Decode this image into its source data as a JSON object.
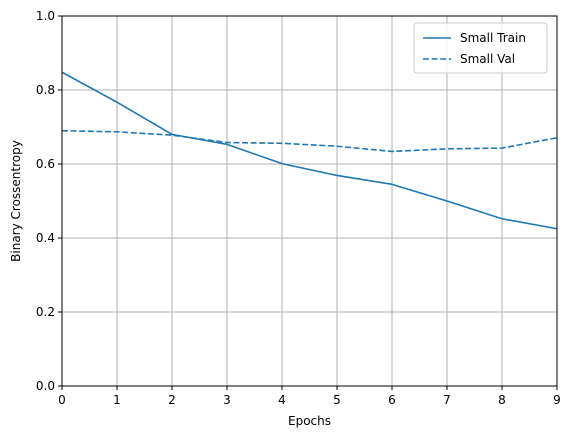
{
  "chart_data": {
    "type": "line",
    "title": "",
    "xlabel": "Epochs",
    "ylabel": "Binary Crossentropy",
    "xlim": [
      0,
      9
    ],
    "ylim": [
      0,
      1.0
    ],
    "xticks": [
      0,
      1,
      2,
      3,
      4,
      5,
      6,
      7,
      8,
      9
    ],
    "xtick_labels": [
      "0",
      "1",
      "2",
      "3",
      "4",
      "5",
      "6",
      "7",
      "8",
      "9"
    ],
    "yticks": [
      0,
      0.2,
      0.4,
      0.6,
      0.8,
      1.0
    ],
    "ytick_labels": [
      "0.0",
      "0.2",
      "0.4",
      "0.6",
      "0.8",
      "1.0"
    ],
    "grid": true,
    "legend_position": "top-right",
    "x": [
      0,
      1,
      2,
      3,
      4,
      5,
      6,
      7,
      8,
      9
    ],
    "series": [
      {
        "name": "Small Train",
        "style": "solid",
        "color": "#1f77b4",
        "values": [
          0.848,
          0.767,
          0.68,
          0.653,
          0.601,
          0.569,
          0.545,
          0.5,
          0.452,
          0.425
        ]
      },
      {
        "name": "Small Val",
        "style": "dashed",
        "color": "#1f77b4",
        "values": [
          0.69,
          0.687,
          0.678,
          0.658,
          0.656,
          0.648,
          0.634,
          0.641,
          0.643,
          0.671
        ]
      }
    ]
  }
}
